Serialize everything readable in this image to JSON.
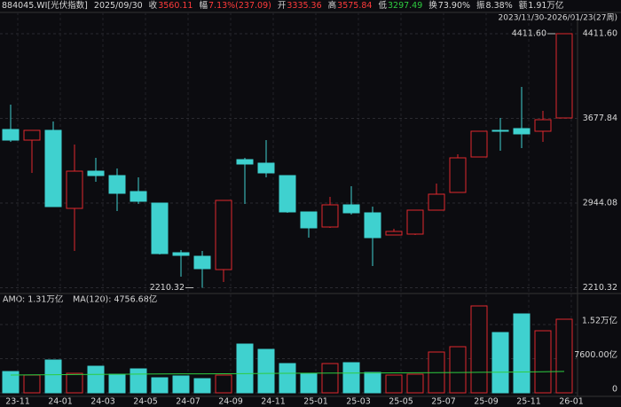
{
  "header": {
    "items": [
      {
        "value": "884045.WI[光伏指数]",
        "color": "#d8d8d8"
      },
      {
        "value": "2025/09/30",
        "color": "#d8d8d8"
      },
      {
        "label": "收",
        "value": "3560.11",
        "color": "#ff3b3b"
      },
      {
        "label": "幅",
        "value": "7.13%(237.09)",
        "color": "#ff3b3b"
      },
      {
        "label": "开",
        "value": "3335.36",
        "color": "#ff3b3b"
      },
      {
        "label": "高",
        "value": "3575.84",
        "color": "#ff3b3b"
      },
      {
        "label": "低",
        "value": "3297.49",
        "color": "#2ecc40"
      },
      {
        "label": "换",
        "value": "73.90%",
        "color": "#d8d8d8"
      },
      {
        "label": "振",
        "value": "8.38%",
        "color": "#d8d8d8"
      },
      {
        "label": "额",
        "value": "1.91万亿",
        "color": "#d8d8d8"
      }
    ],
    "range": "2023/11/30-2026/01/23(27周)"
  },
  "chart_data": [
    {
      "type": "candlestick",
      "up_color": "#e0282e",
      "down_color": "#3fd1cf",
      "categories": [
        "23-11",
        null,
        "24-01",
        null,
        "24-03",
        null,
        "24-05",
        null,
        "24-07",
        null,
        "24-09",
        null,
        "24-11",
        null,
        "25-01",
        null,
        "25-03",
        null,
        "25-05",
        null,
        "25-07",
        null,
        "25-09",
        null,
        "25-11",
        null,
        "26-01"
      ],
      "open": [
        3581.8,
        3489.6,
        3574.2,
        2898.0,
        3220.7,
        3182.3,
        3044.0,
        2944.1,
        2513.9,
        2483.2,
        2367.9,
        3320.6,
        3289.9,
        3182.3,
        2867.3,
        2736.7,
        2928.8,
        2859.6,
        2667.6,
        2675.3,
        2882.7,
        3036.3,
        3343.6,
        3574.2,
        3589.5,
        3566.5,
        3681.7
      ],
      "high": [
        3797.0,
        3574.2,
        3651.0,
        3451.2,
        3336.0,
        3243.8,
        3166.9,
        2944.1,
        2537.0,
        2529.3,
        2967.2,
        3336.0,
        3489.6,
        3182.3,
        2867.3,
        2997.9,
        3090.1,
        2913.4,
        2721.4,
        2882.7,
        3113.2,
        3366.7,
        3566.5,
        3681.7,
        3950.6,
        3743.2,
        4411.6
      ],
      "low": [
        3474.3,
        3205.4,
        2913.4,
        2529.3,
        3128.5,
        2875.0,
        2936.4,
        2498.6,
        2306.4,
        2210.32,
        2260.4,
        2936.4,
        3166.9,
        2859.6,
        2644.5,
        2729.0,
        2844.3,
        2398.6,
        2667.6,
        2667.6,
        2882.7,
        3036.3,
        3343.6,
        3397.4,
        3420.5,
        3474.3,
        3681.7
      ],
      "close": [
        3489.6,
        3574.2,
        2913.4,
        3220.7,
        3182.3,
        3028.6,
        2959.5,
        2506.2,
        2490.9,
        2375.6,
        2967.2,
        3282.2,
        3205.4,
        2867.3,
        2729.0,
        2928.8,
        2859.6,
        2644.5,
        2698.3,
        2882.7,
        3021.0,
        3336.0,
        3566.5,
        3566.5,
        3543.4,
        3666.4,
        4411.6
      ],
      "ylim": [
        2168.2,
        4565.3
      ],
      "yticks": [
        {
          "value": 2210.32,
          "label": "2210.32"
        },
        {
          "value": 2944.08,
          "label": "2944.08"
        },
        {
          "value": 3677.84,
          "label": "3677.84"
        },
        {
          "value": 4411.6,
          "label": "4411.60"
        }
      ],
      "annotations": [
        {
          "text": "4411.60",
          "index": 26,
          "value": 4411.6
        },
        {
          "text": "2210.32",
          "index": 9,
          "value": 2210.32
        }
      ]
    },
    {
      "type": "volume",
      "title": "AMO: 1.31万亿",
      "ma_label": "MA(120): 4756.68亿",
      "ma_color": "#2ecc40",
      "values": [
        4738,
        3948,
        7304,
        4343,
        5922,
        4145,
        5330,
        3356,
        3751,
        3158,
        3948,
        10857,
        9673,
        6514,
        4343,
        6514,
        6712,
        4540,
        3948,
        4145,
        9080,
        10265,
        19345,
        13423,
        17569,
        13818,
        16384
      ],
      "ma_values": [
        3950,
        3990,
        4030,
        4070,
        4100,
        4130,
        4160,
        4190,
        4210,
        4230,
        4250,
        4280,
        4310,
        4340,
        4360,
        4380,
        4400,
        4420,
        4440,
        4460,
        4490,
        4520,
        4560,
        4600,
        4650,
        4700,
        4756.68
      ],
      "ylim": [
        0,
        19740
      ],
      "yticks": [
        0,
        {
          "value": 7600,
          "label": "7600.00亿"
        },
        {
          "value": 15200,
          "label": "1.52万亿"
        }
      ]
    }
  ]
}
